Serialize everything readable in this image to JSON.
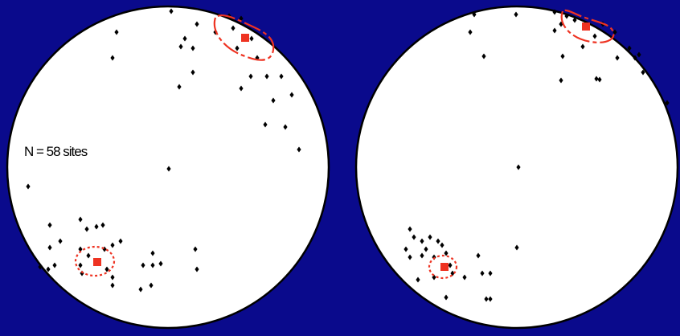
{
  "annotation": "N = 58 sites"
}
